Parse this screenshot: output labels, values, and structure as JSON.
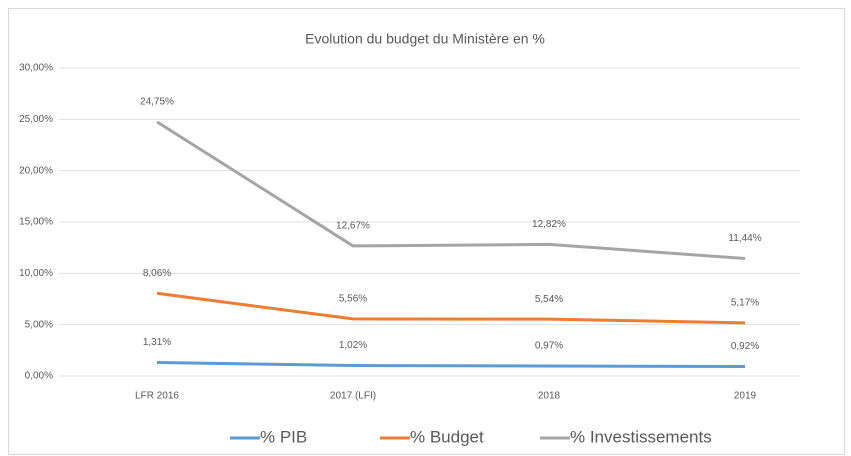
{
  "chart_data": {
    "type": "line",
    "title": "Evolution du budget du Ministère en %",
    "categories": [
      "LFR 2016",
      "2017 (LFI)",
      "2018",
      "2019"
    ],
    "series": [
      {
        "name": "% PIB",
        "color": "#5b9bd5",
        "values": [
          1.31,
          1.02,
          0.97,
          0.92
        ],
        "value_labels": [
          "1,31%",
          "1,02%",
          "0,97%",
          "0,92%"
        ]
      },
      {
        "name": "% Budget",
        "color": "#ed7d31",
        "values": [
          8.06,
          5.56,
          5.54,
          5.17
        ],
        "value_labels": [
          "8,06%",
          "5,56%",
          "5,54%",
          "5,17%"
        ]
      },
      {
        "name": "% Investissements",
        "color": "#a5a5a5",
        "values": [
          24.75,
          12.67,
          12.82,
          11.44
        ],
        "value_labels": [
          "24,75%",
          "12,67%",
          "12,82%",
          "11,44%"
        ]
      }
    ],
    "ylim": [
      0,
      30
    ],
    "yticks": [
      {
        "value": 0,
        "label": "0,00%"
      },
      {
        "value": 5,
        "label": "5,00%"
      },
      {
        "value": 10,
        "label": "10,00%"
      },
      {
        "value": 15,
        "label": "15,00%"
      },
      {
        "value": 20,
        "label": "20,00%"
      },
      {
        "value": 25,
        "label": "25,00%"
      },
      {
        "value": 30,
        "label": "30,00%"
      }
    ],
    "grid": true,
    "legend": "bottom"
  }
}
